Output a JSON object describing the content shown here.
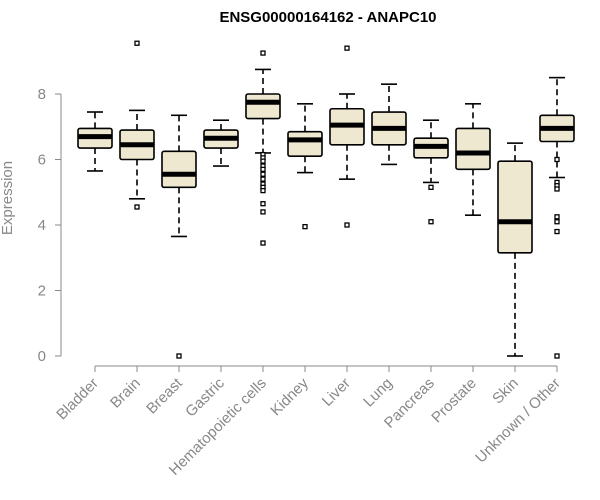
{
  "chart_data": {
    "type": "box",
    "title": "ENSG00000164162 - ANAPC10",
    "xlabel": "",
    "ylabel": "Expression",
    "ylim": [
      0,
      9.6
    ],
    "yticks": [
      0,
      2,
      4,
      6,
      8
    ],
    "grid": false,
    "box_fill": "#efe8d0",
    "box_stroke": "#000000",
    "axis_color": "#888888",
    "categories": [
      "Bladder",
      "Brain",
      "Breast",
      "Gastric",
      "Hematopoietic cells",
      "Kidney",
      "Liver",
      "Lung",
      "Pancreas",
      "Prostate",
      "Skin",
      "Unknown / Other"
    ],
    "boxes": [
      {
        "min": 5.65,
        "q1": 6.35,
        "median": 6.7,
        "q3": 6.95,
        "max": 7.45,
        "outliers": []
      },
      {
        "min": 4.8,
        "q1": 6.0,
        "median": 6.45,
        "q3": 6.9,
        "max": 7.5,
        "outliers": [
          4.55,
          9.55
        ]
      },
      {
        "min": 3.65,
        "q1": 5.15,
        "median": 5.55,
        "q3": 6.25,
        "max": 7.35,
        "outliers": [
          0
        ]
      },
      {
        "min": 5.8,
        "q1": 6.35,
        "median": 6.65,
        "q3": 6.9,
        "max": 7.2,
        "outliers": []
      },
      {
        "min": 6.2,
        "q1": 7.25,
        "median": 7.75,
        "q3": 8.0,
        "max": 8.75,
        "outliers": [
          9.25,
          6.15,
          6.05,
          5.95,
          5.8,
          5.7,
          5.55,
          5.4,
          5.25,
          5.15,
          5.05,
          4.65,
          4.4,
          3.45
        ]
      },
      {
        "min": 5.6,
        "q1": 6.1,
        "median": 6.6,
        "q3": 6.85,
        "max": 7.7,
        "outliers": [
          3.95
        ]
      },
      {
        "min": 5.4,
        "q1": 6.45,
        "median": 7.05,
        "q3": 7.55,
        "max": 8.0,
        "outliers": [
          4.0,
          9.4
        ]
      },
      {
        "min": 5.85,
        "q1": 6.45,
        "median": 6.95,
        "q3": 7.45,
        "max": 8.3,
        "outliers": []
      },
      {
        "min": 5.3,
        "q1": 6.05,
        "median": 6.4,
        "q3": 6.65,
        "max": 7.2,
        "outliers": [
          5.15,
          4.1
        ]
      },
      {
        "min": 4.3,
        "q1": 5.7,
        "median": 6.2,
        "q3": 6.95,
        "max": 7.7,
        "outliers": []
      },
      {
        "min": 0.0,
        "q1": 3.15,
        "median": 4.1,
        "q3": 5.95,
        "max": 6.5,
        "outliers": []
      },
      {
        "min": 5.45,
        "q1": 6.55,
        "median": 6.95,
        "q3": 7.35,
        "max": 8.5,
        "outliers": [
          6.0,
          5.3,
          5.2,
          5.1,
          4.25,
          4.1,
          3.8,
          0
        ]
      }
    ]
  }
}
